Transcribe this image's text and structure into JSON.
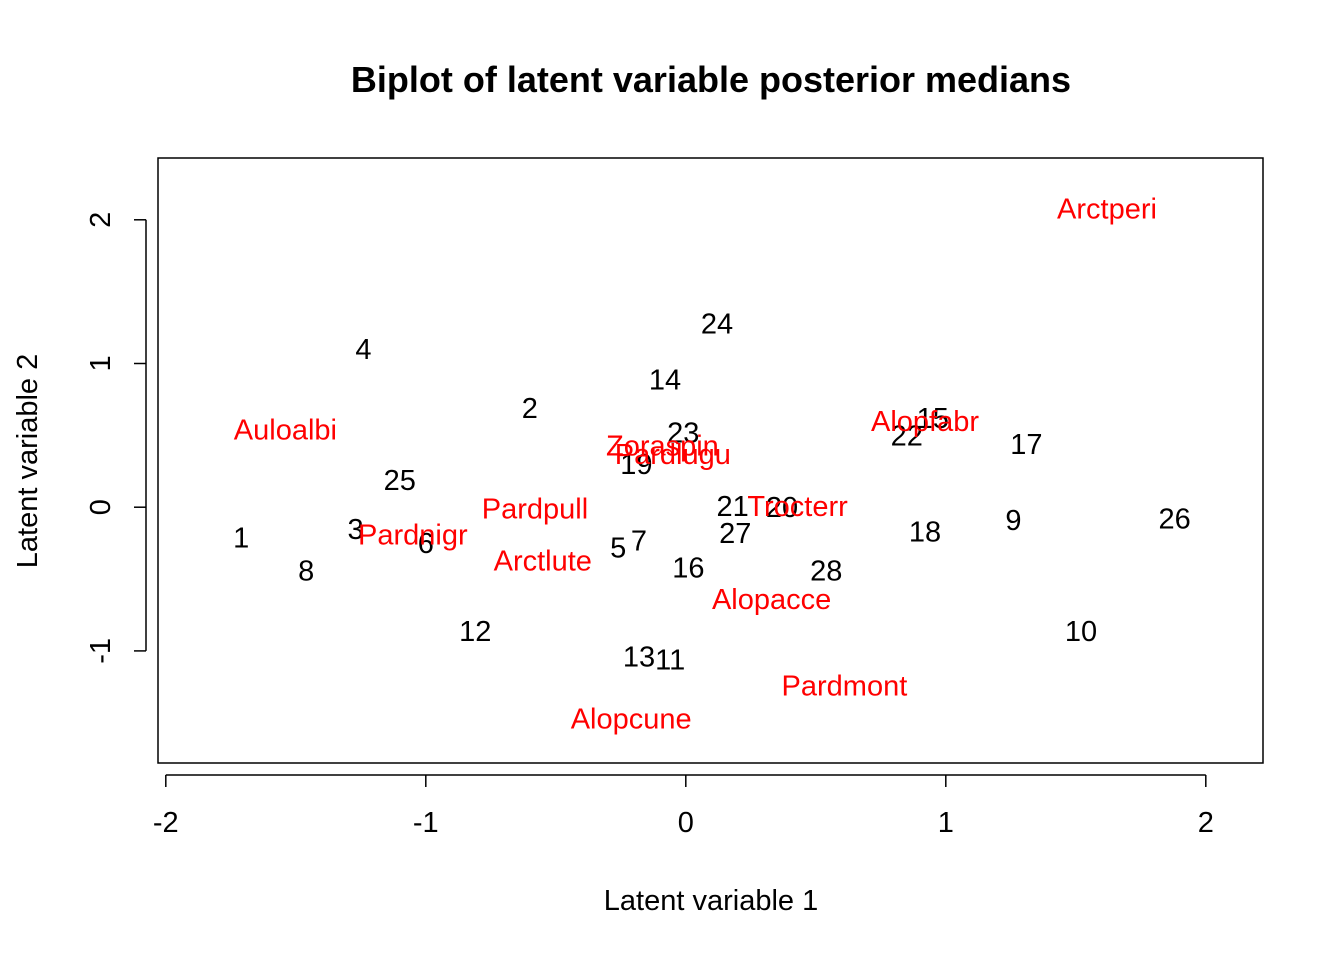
{
  "chart_data": {
    "type": "scatter",
    "title": "Biplot of latent variable posterior medians",
    "xlabel": "Latent variable 1",
    "ylabel": "Latent variable 2",
    "xlim": [
      -2.03,
      2.22
    ],
    "ylim": [
      -1.78,
      2.43
    ],
    "x_ticks": [
      -2,
      -1,
      0,
      1,
      2
    ],
    "x_tick_labels": [
      "-2",
      "-1",
      "0",
      "1",
      "2"
    ],
    "y_ticks": [
      -1,
      0,
      1,
      2
    ],
    "y_tick_labels": [
      "-1",
      "0",
      "1",
      "2"
    ],
    "grid": false,
    "colors": {
      "sites": "#000000",
      "species": "#ff0000",
      "axes": "#000000"
    },
    "series": [
      {
        "color": "#000000",
        "points": [
          {
            "label": "1",
            "x": -1.71,
            "y": -0.21
          },
          {
            "label": "2",
            "x": -0.6,
            "y": 0.69
          },
          {
            "label": "3",
            "x": -1.27,
            "y": -0.15
          },
          {
            "label": "4",
            "x": -1.24,
            "y": 1.1
          },
          {
            "label": "5",
            "x": -0.26,
            "y": -0.28
          },
          {
            "label": "6",
            "x": -1.0,
            "y": -0.25
          },
          {
            "label": "7",
            "x": -0.18,
            "y": -0.23
          },
          {
            "label": "8",
            "x": -1.46,
            "y": -0.44
          },
          {
            "label": "9",
            "x": 1.26,
            "y": -0.09
          },
          {
            "label": "10",
            "x": 1.52,
            "y": -0.86
          },
          {
            "label": "11",
            "x": -0.06,
            "y": -1.06
          },
          {
            "label": "12",
            "x": -0.81,
            "y": -0.86
          },
          {
            "label": "13",
            "x": -0.18,
            "y": -1.04
          },
          {
            "label": "14",
            "x": -0.08,
            "y": 0.89
          },
          {
            "label": "15",
            "x": 0.95,
            "y": 0.62
          },
          {
            "label": "16",
            "x": 0.01,
            "y": -0.42
          },
          {
            "label": "17",
            "x": 1.31,
            "y": 0.44
          },
          {
            "label": "18",
            "x": 0.92,
            "y": -0.17
          },
          {
            "label": "19",
            "x": -0.19,
            "y": 0.3
          },
          {
            "label": "20",
            "x": 0.37,
            "y": 0.0
          },
          {
            "label": "21",
            "x": 0.18,
            "y": 0.01
          },
          {
            "label": "22",
            "x": 0.85,
            "y": 0.5
          },
          {
            "label": "23",
            "x": -0.01,
            "y": 0.52
          },
          {
            "label": "24",
            "x": 0.12,
            "y": 1.28
          },
          {
            "label": "25",
            "x": -1.1,
            "y": 0.19
          },
          {
            "label": "26",
            "x": 1.88,
            "y": -0.08
          },
          {
            "label": "27",
            "x": 0.19,
            "y": -0.18
          },
          {
            "label": "28",
            "x": 0.54,
            "y": -0.44
          }
        ]
      },
      {
        "color": "#ff0000",
        "points": [
          {
            "label": "Alopacce",
            "x": 0.33,
            "y": -0.64
          },
          {
            "label": "Alopcune",
            "x": -0.21,
            "y": -1.47
          },
          {
            "label": "Alopfabr",
            "x": 0.92,
            "y": 0.6
          },
          {
            "label": "Arctlute",
            "x": -0.55,
            "y": -0.37
          },
          {
            "label": "Arctperi",
            "x": 1.62,
            "y": 2.08
          },
          {
            "label": "Auloalbi",
            "x": -1.54,
            "y": 0.54
          },
          {
            "label": "Pardlugu",
            "x": -0.05,
            "y": 0.37
          },
          {
            "label": "Pardmont",
            "x": 0.61,
            "y": -1.24
          },
          {
            "label": "Pardnigr",
            "x": -1.05,
            "y": -0.19
          },
          {
            "label": "Pardpull",
            "x": -0.58,
            "y": -0.01
          },
          {
            "label": "Trocterr",
            "x": 0.43,
            "y": 0.01
          },
          {
            "label": "Zoraspin",
            "x": -0.09,
            "y": 0.43
          }
        ]
      }
    ]
  }
}
